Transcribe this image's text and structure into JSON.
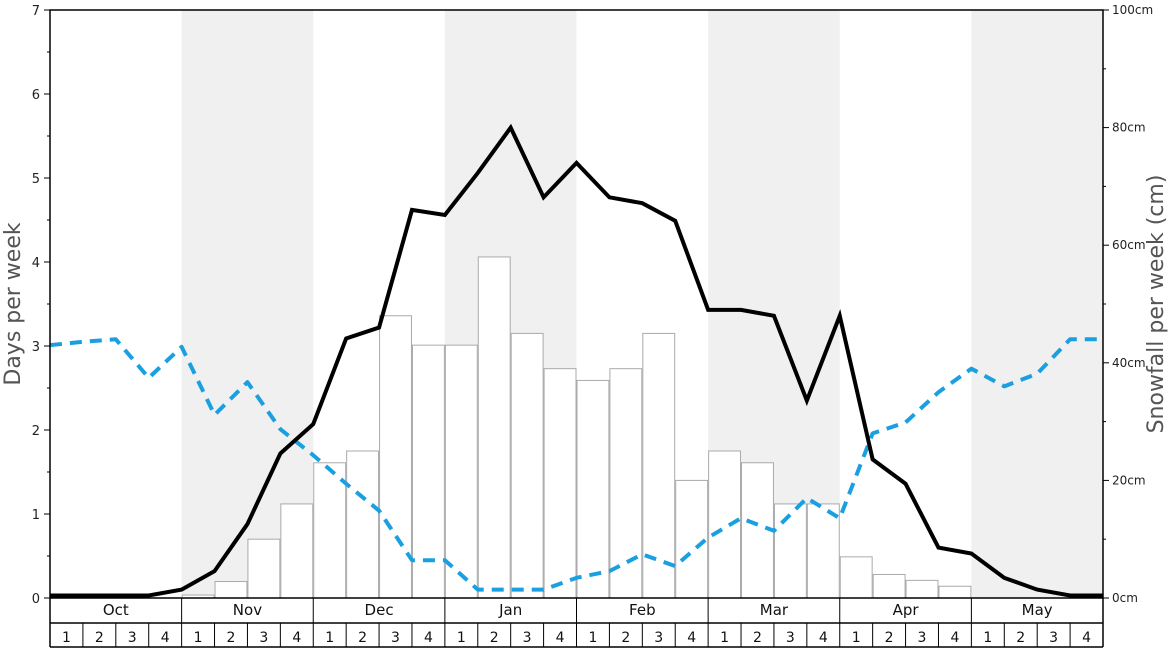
{
  "chart_data": {
    "type": "bar",
    "title": "",
    "ylabel_left": "Days per week",
    "ylabel_right": "Snowfall per week (cm)",
    "ylim_left": [
      0,
      7
    ],
    "ylim_right": [
      0,
      100
    ],
    "left_ticks": [
      "0",
      "1",
      "2",
      "3",
      "4",
      "5",
      "6",
      "7"
    ],
    "right_ticks": [
      "0cm",
      "20cm",
      "40cm",
      "60cm",
      "80cm",
      "100cm"
    ],
    "months": [
      "Oct",
      "Nov",
      "Dec",
      "Jan",
      "Feb",
      "Mar",
      "Apr",
      "May"
    ],
    "week_labels": [
      "1",
      "2",
      "3",
      "4"
    ],
    "shaded_months": [
      "Nov",
      "Jan",
      "Mar",
      "May"
    ],
    "colors": {
      "bars_fill": "#ffffff",
      "bars_stroke": "#aaaaaa",
      "black_line": "#000000",
      "blue_dashed_line": "#1aa0e0",
      "shade": "#f0f0f0"
    },
    "series": [
      {
        "kind": "bars",
        "axis": "right",
        "values": [
          0,
          0,
          0,
          0,
          0.5,
          2.8,
          10,
          16,
          23,
          25,
          48,
          43,
          43,
          58,
          45,
          39,
          37,
          39,
          45,
          20,
          25,
          23,
          16,
          16,
          7,
          4,
          3,
          2,
          0,
          0,
          0,
          0
        ]
      },
      {
        "kind": "solid-line",
        "axis": "left",
        "values": [
          0.03,
          0.03,
          0.03,
          0.03,
          0.1,
          0.32,
          0.88,
          1.72,
          2.07,
          3.09,
          3.22,
          4.62,
          4.56,
          5.06,
          5.6,
          4.77,
          5.18,
          4.77,
          4.7,
          4.49,
          3.43,
          3.43,
          3.36,
          2.35,
          3.36,
          1.65,
          1.36,
          0.6,
          0.53,
          0.24,
          0.1,
          0.03,
          0.03
        ]
      },
      {
        "kind": "dashed-line",
        "axis": "left",
        "values": [
          3.01,
          3.05,
          3.08,
          2.62,
          2.99,
          2.18,
          2.57,
          2.01,
          1.7,
          1.36,
          1.04,
          0.45,
          0.45,
          0.1,
          0.1,
          0.1,
          0.24,
          0.32,
          0.52,
          0.38,
          0.72,
          0.95,
          0.8,
          1.19,
          0.95,
          1.96,
          2.09,
          2.45,
          2.73,
          2.52,
          2.67,
          3.08,
          3.08
        ]
      }
    ]
  }
}
